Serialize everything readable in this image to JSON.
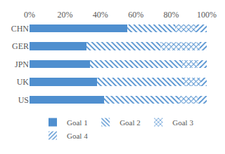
{
  "chart_data": {
    "type": "bar",
    "orientation": "horizontal",
    "stacked": true,
    "categories": [
      "CHN",
      "GER",
      "JPN",
      "UK",
      "US"
    ],
    "series": [
      {
        "name": "Goal 1",
        "color": "#4f8fcf",
        "marker": "solid",
        "values": [
          55,
          32,
          34,
          38,
          42
        ]
      },
      {
        "name": "Goal 2",
        "color": "#4f8fcf",
        "marker": "backslash",
        "values": [
          27,
          42,
          52,
          49,
          42
        ]
      },
      {
        "name": "Goal 3",
        "color": "#4f8fcf",
        "marker": "cross",
        "values": [
          12,
          22,
          9,
          10,
          11
        ]
      },
      {
        "name": "Goal 4",
        "color": "#4f8fcf",
        "marker": "slash",
        "values": [
          6,
          4,
          5,
          3,
          5
        ]
      }
    ],
    "xlim": [
      0,
      100
    ],
    "xticks": [
      {
        "value": 0,
        "label": "0%"
      },
      {
        "value": 20,
        "label": "20%"
      },
      {
        "value": 40,
        "label": "40%"
      },
      {
        "value": 60,
        "label": "60%"
      },
      {
        "value": 80,
        "label": "80%"
      },
      {
        "value": 100,
        "label": "100%"
      }
    ],
    "grid": false,
    "legend": "bottom"
  }
}
